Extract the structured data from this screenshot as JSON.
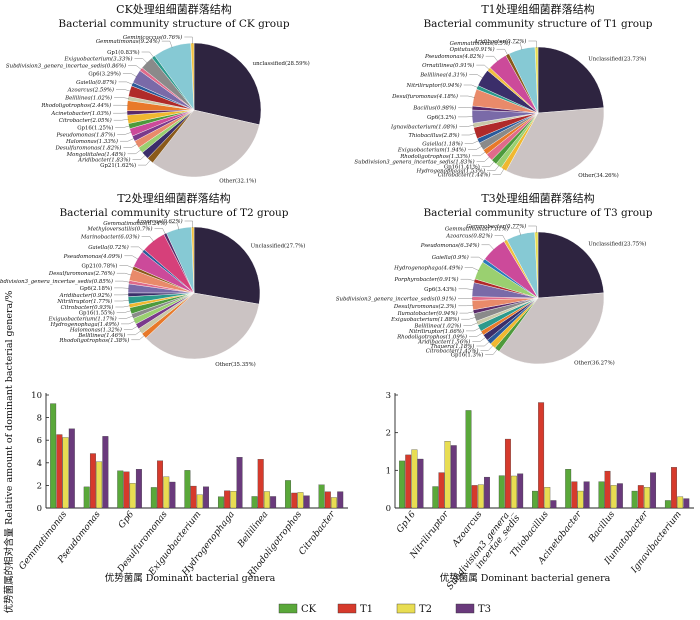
{
  "colors": {
    "CK": "#5aa83a",
    "T1": "#d63a2c",
    "T2": "#e8dd52",
    "T3": "#6a3a7c",
    "unclassified": "#2e2440",
    "other": "#cbc3c3"
  },
  "chart_data": [
    {
      "type": "pie",
      "title_cn": "CK处理组细菌群落结构",
      "title_en": "Bacterial community structure of CK group",
      "slices": [
        {
          "label": "unclassified(28.59%)",
          "value": 28.59,
          "color": "#2e2440"
        },
        {
          "label": "Other(32.1%)",
          "value": 32.1,
          "color": "#cbc3c3"
        },
        {
          "label": "Gp21(1.62%)",
          "value": 1.62,
          "color": "#8a5a1a"
        },
        {
          "label": "Aridibacter(1.83%)",
          "value": 1.83,
          "color": "#3b2e6a"
        },
        {
          "label": "Mongoliitalea(1.48%)",
          "value": 1.48,
          "color": "#9ad070"
        },
        {
          "label": "Desulfuromonas(1.82%)",
          "value": 1.82,
          "color": "#e98a6a"
        },
        {
          "label": "Halomonas(1.33%)",
          "value": 1.33,
          "color": "#7b3a8c"
        },
        {
          "label": "Pseudomonas(1.87%)",
          "value": 1.87,
          "color": "#cc4a9a"
        },
        {
          "label": "Gp16(1.25%)",
          "value": 1.25,
          "color": "#4d9a3c"
        },
        {
          "label": "Citrobacter(2.05%)",
          "value": 2.05,
          "color": "#f0b830"
        },
        {
          "label": "Acinetobacter(1.03%)",
          "value": 1.03,
          "color": "#5a2a6a"
        },
        {
          "label": "Rhodoligotrophos(2.44%)",
          "value": 2.44,
          "color": "#e8792a"
        },
        {
          "label": "Bellilinea(1.02%)",
          "value": 1.02,
          "color": "#c9c9a8"
        },
        {
          "label": "Azoarcus(2.59%)",
          "value": 2.59,
          "color": "#b02a2a"
        },
        {
          "label": "Gaiella(0.87%)",
          "value": 0.87,
          "color": "#2a5a9a"
        },
        {
          "label": "Gp6(3.29%)",
          "value": 3.29,
          "color": "#7a6aa8"
        },
        {
          "label": "Subdivision3_genera_incertae_sedis(0.86%)",
          "value": 0.86,
          "color": "#e06a8a"
        },
        {
          "label": "Exiguobacterium(3.33%)",
          "value": 3.33,
          "color": "#8a8a8a"
        },
        {
          "label": "Gp1(0.83%)",
          "value": 0.83,
          "color": "#2c9a8c"
        },
        {
          "label": "Gemmatimonas(9.24%)",
          "value": 9.24,
          "color": "#86c9d4"
        },
        {
          "label": "Geminicoccus(0.76%)",
          "value": 0.76,
          "color": "#f0c040"
        }
      ]
    },
    {
      "type": "pie",
      "title_cn": "T1处理组细菌群落结构",
      "title_en": "Bacterial community structure of T1 group",
      "slices": [
        {
          "label": "Unclassified(23.73%)",
          "value": 23.73,
          "color": "#2e2440"
        },
        {
          "label": "Other(34.26%)",
          "value": 34.26,
          "color": "#cbc3c3"
        },
        {
          "label": "Citrobacter(1.44%)",
          "value": 1.44,
          "color": "#f0b830"
        },
        {
          "label": "Hydrogenophaga(1.53%)",
          "value": 1.53,
          "color": "#9ad070"
        },
        {
          "label": "Gp16(1.41%)",
          "value": 1.41,
          "color": "#4d9a3c"
        },
        {
          "label": "Subdivision3_genera_incertae_sedis(1.83%)",
          "value": 1.83,
          "color": "#e06a8a"
        },
        {
          "label": "Rhodoligotrophos(1.33%)",
          "value": 1.33,
          "color": "#e8792a"
        },
        {
          "label": "Exiguobacterium(1.94%)",
          "value": 1.94,
          "color": "#8a8a8a"
        },
        {
          "label": "Gaiella(1.18%)",
          "value": 1.18,
          "color": "#2a5a9a"
        },
        {
          "label": "Thiobacillus(2.8%)",
          "value": 2.8,
          "color": "#b02a2a"
        },
        {
          "label": "Ignavibacterium(1.08%)",
          "value": 1.08,
          "color": "#c9c9a8"
        },
        {
          "label": "Gp6(3.2%)",
          "value": 3.2,
          "color": "#7a6aa8"
        },
        {
          "label": "Bacillus(0.98%)",
          "value": 0.98,
          "color": "#5a2a6a"
        },
        {
          "label": "Desulfuromonas(4.18%)",
          "value": 4.18,
          "color": "#e98a6a"
        },
        {
          "label": "Nitriliruptor(0.94%)",
          "value": 0.94,
          "color": "#2c9a8c"
        },
        {
          "label": "Bellilinea(4.31%)",
          "value": 4.31,
          "color": "#3b2e6a"
        },
        {
          "label": "Ornatilinea(0.91%)",
          "value": 0.91,
          "color": "#f0c040"
        },
        {
          "label": "Pseudomonas(4.82%)",
          "value": 4.82,
          "color": "#cc4a9a"
        },
        {
          "label": "Opitutus(0.91%)",
          "value": 0.91,
          "color": "#8a5a1a"
        },
        {
          "label": "Gemmatimonas(6.5%)",
          "value": 6.5,
          "color": "#86c9d4"
        },
        {
          "label": "Aridibacter(0.72%)",
          "value": 0.72,
          "color": "#e8dd52"
        }
      ]
    },
    {
      "type": "pie",
      "title_cn": "T2处理组细菌群落结构",
      "title_en": "Bacterial community structure of T2 group",
      "slices": [
        {
          "label": "Unclassified(27.7%)",
          "value": 27.7,
          "color": "#2e2440"
        },
        {
          "label": "Other(35.35%)",
          "value": 35.35,
          "color": "#cbc3c3"
        },
        {
          "label": "Rhodoligotrophos(1.38%)",
          "value": 1.38,
          "color": "#e8792a"
        },
        {
          "label": "Bellilinea(1.46%)",
          "value": 1.46,
          "color": "#c9c9a8"
        },
        {
          "label": "Halomonas(1.32%)",
          "value": 1.32,
          "color": "#7b3a8c"
        },
        {
          "label": "Hydrogenophaga(1.49%)",
          "value": 1.49,
          "color": "#9ad070"
        },
        {
          "label": "Exiguobacterium(1.17%)",
          "value": 1.17,
          "color": "#8a8a8a"
        },
        {
          "label": "Gp16(1.55%)",
          "value": 1.55,
          "color": "#4d9a3c"
        },
        {
          "label": "Citrobacter(0.93%)",
          "value": 0.93,
          "color": "#f0b830"
        },
        {
          "label": "Nitriliruptor(1.77%)",
          "value": 1.77,
          "color": "#2c9a8c"
        },
        {
          "label": "Aridibacter(0.92%)",
          "value": 0.92,
          "color": "#3b2e6a"
        },
        {
          "label": "Gp6(2.18%)",
          "value": 2.18,
          "color": "#7a6aa8"
        },
        {
          "label": "Subdivision3_genera_incertae_sedis(0.85%)",
          "value": 0.85,
          "color": "#e06a8a"
        },
        {
          "label": "Desulfuromonas(2.76%)",
          "value": 2.76,
          "color": "#e98a6a"
        },
        {
          "label": "Gp21(0.78%)",
          "value": 0.78,
          "color": "#8a5a1a"
        },
        {
          "label": "Pseudomonas(4.09%)",
          "value": 4.09,
          "color": "#cc4a9a"
        },
        {
          "label": "Gaiella(0.72%)",
          "value": 0.72,
          "color": "#2a5a9a"
        },
        {
          "label": "Marinobacter(6.03%)",
          "value": 6.03,
          "color": "#d6407a"
        },
        {
          "label": "Methyloversatilis(0.7%)",
          "value": 0.7,
          "color": "#5a2a6a"
        },
        {
          "label": "Gemmatimonas(6.24%)",
          "value": 6.24,
          "color": "#86c9d4"
        },
        {
          "label": "Azoarcus(0.62%)",
          "value": 0.62,
          "color": "#f0c040"
        }
      ]
    },
    {
      "type": "pie",
      "title_cn": "T3处理组细菌群落结构",
      "title_en": "Bacterial community structure of T3 group",
      "slices": [
        {
          "label": "Unclassified(23.75%)",
          "value": 23.75,
          "color": "#2e2440"
        },
        {
          "label": "Other(36.27%)",
          "value": 36.27,
          "color": "#cbc3c3"
        },
        {
          "label": "Gp16(1.3%)",
          "value": 1.3,
          "color": "#4d9a3c"
        },
        {
          "label": "Citrobacter(1.45%)",
          "value": 1.45,
          "color": "#f0b830"
        },
        {
          "label": "Thauera(1.18%)",
          "value": 1.18,
          "color": "#2a5a9a"
        },
        {
          "label": "Aridibacter(1.56%)",
          "value": 1.56,
          "color": "#3b2e6a"
        },
        {
          "label": "Rhodoligotrophos(1.09%)",
          "value": 1.09,
          "color": "#e8792a"
        },
        {
          "label": "Nitriliruptor(1.66%)",
          "value": 1.66,
          "color": "#2c9a8c"
        },
        {
          "label": "Bellilinea(1.02%)",
          "value": 1.02,
          "color": "#c9c9a8"
        },
        {
          "label": "Exiguobacterium(1.88%)",
          "value": 1.88,
          "color": "#8a8a8a"
        },
        {
          "label": "Ilumatobacter(0.94%)",
          "value": 0.94,
          "color": "#5a2a6a"
        },
        {
          "label": "Desulfuromonas(2.3%)",
          "value": 2.3,
          "color": "#e98a6a"
        },
        {
          "label": "Subdivision3_genera_incertae_sedis(0.91%)",
          "value": 0.91,
          "color": "#e06a8a"
        },
        {
          "label": "Gp6(3.43%)",
          "value": 3.43,
          "color": "#7a6aa8"
        },
        {
          "label": "Porphyrobacter(0.91%)",
          "value": 0.91,
          "color": "#b02a2a"
        },
        {
          "label": "Hydrogenophaga(4.49%)",
          "value": 4.49,
          "color": "#9ad070"
        },
        {
          "label": "Gaiella(0.9%)",
          "value": 0.9,
          "color": "#2a7aba"
        },
        {
          "label": "Pseudomonas(6.34%)",
          "value": 6.34,
          "color": "#cc4a9a"
        },
        {
          "label": "Azoarcus(0.82%)",
          "value": 0.82,
          "color": "#f0c040"
        },
        {
          "label": "Gemmatimonas(7.01%)",
          "value": 7.01,
          "color": "#86c9d4"
        },
        {
          "label": "Gemmobacter(0.77%)",
          "value": 0.77,
          "color": "#e8dd52"
        }
      ]
    },
    {
      "type": "bar",
      "categories": [
        "Gemmatimonas",
        "Pseudomonas",
        "Gp6",
        "Desulfuromonas",
        "Exiguobacterium",
        "Hydrogenophaga",
        "Bellilinea",
        "Rhodoligotrophos",
        "Citrobacter"
      ],
      "series": [
        {
          "name": "CK",
          "values": [
            9.24,
            1.87,
            3.29,
            1.82,
            3.33,
            1.0,
            1.02,
            2.44,
            2.05
          ]
        },
        {
          "name": "T1",
          "values": [
            6.5,
            4.82,
            3.2,
            4.18,
            1.94,
            1.53,
            4.31,
            1.33,
            1.44
          ]
        },
        {
          "name": "T2",
          "values": [
            6.24,
            4.09,
            2.18,
            2.76,
            1.17,
            1.49,
            1.46,
            1.38,
            0.93
          ]
        },
        {
          "name": "T3",
          "values": [
            7.01,
            6.34,
            3.43,
            2.3,
            1.88,
            4.49,
            1.02,
            1.09,
            1.45
          ]
        }
      ],
      "ylabel": "优势菌属的相对含量 Relative amount of dominant bacterial genera/%",
      "xlabel": "优势菌属 Dominant bacterial genera",
      "ylim": [
        0,
        10
      ],
      "yticks": [
        0,
        2,
        4,
        6,
        8,
        10
      ]
    },
    {
      "type": "bar",
      "categories": [
        "Gp16",
        "Nitriliruptor",
        "Azoarcus",
        "Subdivision3_genera_incertae_sedis",
        "Thiobacillus",
        "Acinetobacter",
        "Bacillus",
        "Ilumatobacter",
        "Ignavibacterium"
      ],
      "category_lines": [
        [
          "Gp16"
        ],
        [
          "Nitriliruptor"
        ],
        [
          "Azoarcus"
        ],
        [
          "Subdivision3_genera_",
          "incertae_sedis"
        ],
        [
          "Thiobacillus"
        ],
        [
          "Acinetobacter"
        ],
        [
          "Bacillus"
        ],
        [
          "Ilumatobacter"
        ],
        [
          "Ignavibacterium"
        ]
      ],
      "series": [
        {
          "name": "CK",
          "values": [
            1.25,
            0.57,
            2.59,
            0.86,
            0.45,
            1.03,
            0.7,
            0.45,
            0.2
          ]
        },
        {
          "name": "T1",
          "values": [
            1.41,
            0.94,
            0.6,
            1.83,
            2.8,
            0.7,
            0.98,
            0.6,
            1.08
          ]
        },
        {
          "name": "T2",
          "values": [
            1.55,
            1.77,
            0.62,
            0.85,
            0.55,
            0.45,
            0.6,
            0.55,
            0.3
          ]
        },
        {
          "name": "T3",
          "values": [
            1.3,
            1.66,
            0.82,
            0.91,
            0.2,
            0.7,
            0.65,
            0.94,
            0.25
          ]
        }
      ],
      "xlabel": "优势菌属 Dominant bacterial genera",
      "ylim": [
        0,
        3
      ],
      "yticks": [
        0,
        1,
        2,
        3
      ]
    }
  ],
  "legend": [
    {
      "name": "CK",
      "color": "#5aa83a"
    },
    {
      "name": "T1",
      "color": "#d63a2c"
    },
    {
      "name": "T2",
      "color": "#e8dd52"
    },
    {
      "name": "T3",
      "color": "#6a3a7c"
    }
  ]
}
